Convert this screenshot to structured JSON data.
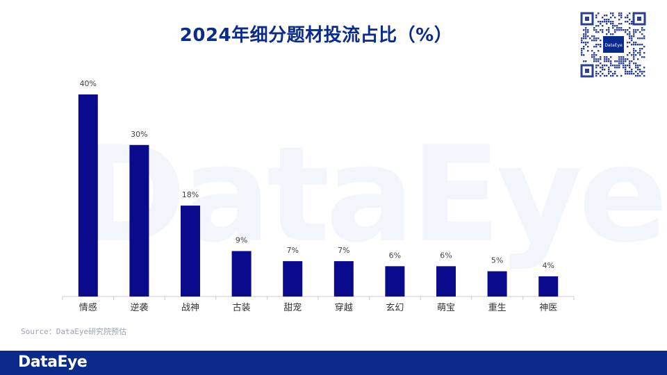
{
  "title": "2024年细分题材投流占比（%）",
  "watermark": "DataEye",
  "qr_label": "DataEye",
  "source": "Source：DataEye研究院预估",
  "footer_logo": "DataEye",
  "colors": {
    "bar": "#0a0a8c",
    "title": "#0a2a8c",
    "footer": "#0a2a8c"
  },
  "chart_data": {
    "type": "bar",
    "title": "2024年细分题材投流占比（%）",
    "xlabel": "",
    "ylabel": "",
    "ylim": [
      0,
      40
    ],
    "grid": false,
    "categories": [
      "情感",
      "逆袭",
      "战神",
      "古装",
      "甜宠",
      "穿越",
      "玄幻",
      "萌宝",
      "重生",
      "神医"
    ],
    "values": [
      40,
      30,
      18,
      9,
      7,
      7,
      6,
      6,
      5,
      4
    ],
    "data_labels": [
      "40%",
      "30%",
      "18%",
      "9%",
      "7%",
      "7%",
      "6%",
      "6%",
      "5%",
      "4%"
    ]
  }
}
